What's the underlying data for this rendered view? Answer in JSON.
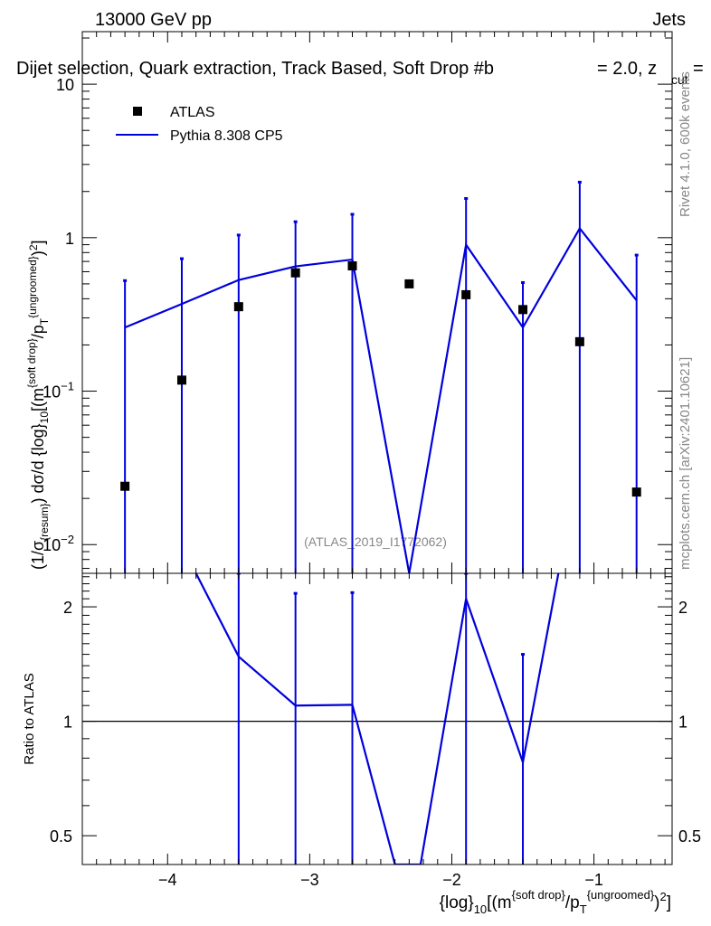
{
  "header": {
    "left": "13000 GeV pp",
    "right": "Jets",
    "title_main": "Dijet selection, Quark extraction, Track Based, Soft Drop #b",
    "title_tail": "= 2.0, z",
    "title_sub": "cut",
    "title_end": "=",
    "side_rivet": "Rivet 4.1.0,  600k events",
    "side_mcplots": "mcplots.cern.ch [arXiv:2401.10621]",
    "watermark": "(ATLAS_2019_I1772062)"
  },
  "colors": {
    "mc": "#0000dd",
    "data": "#000000",
    "axis": "#000000"
  },
  "chart_data": [
    {
      "type": "scatter",
      "name": "main-panel",
      "yscale": "log",
      "xlim": [
        -4.6,
        -0.45
      ],
      "ylim": [
        0.0065,
        22
      ],
      "ylabel": "(1/σ_{resum}) dσ/d {log}_{10}[(m^{soft drop}/p_T^{ungroomed})^2]",
      "ytick_labels": [
        "10^-2",
        "10^-1",
        "1",
        "10"
      ],
      "legend": {
        "position": "top-left",
        "entries": [
          "ATLAS",
          "Pythia 8.308 CP5"
        ]
      },
      "series": [
        {
          "name": "ATLAS",
          "kind": "points",
          "x": [
            -4.3,
            -3.9,
            -3.5,
            -3.1,
            -2.7,
            -2.3,
            -1.9,
            -1.5,
            -1.1,
            -0.7
          ],
          "y": [
            0.024,
            0.118,
            0.355,
            0.59,
            0.655,
            0.5,
            0.425,
            0.34,
            0.21,
            0.022
          ],
          "yerr_up": [
            0.525,
            0.73,
            1.04,
            1.27,
            1.42,
            null,
            1.8,
            0.51,
            2.3,
            0.77
          ]
        },
        {
          "name": "Pythia 8.308 CP5",
          "kind": "line",
          "x": [
            -4.3,
            -3.9,
            -3.5,
            -3.1,
            -2.7,
            -2.3,
            -1.9,
            -1.5,
            -1.1,
            -0.7
          ],
          "y": [
            0.26,
            0.37,
            0.53,
            0.65,
            0.72,
            0.0065,
            0.9,
            0.26,
            1.15,
            0.39
          ]
        }
      ]
    },
    {
      "type": "line",
      "name": "ratio-panel",
      "yscale": "log",
      "xlim": [
        -4.6,
        -0.45
      ],
      "ylim": [
        0.42,
        2.45
      ],
      "xlabel": "{log}_{10}[(m^{soft drop}/p_T^{ungroomed})^2]",
      "ylabel": "Ratio to ATLAS",
      "xtick_labels": [
        "−4",
        "−3",
        "−2",
        "−1"
      ],
      "ytick_labels": [
        "0.5",
        "1",
        "2"
      ],
      "reference_line": 1,
      "series": [
        {
          "name": "Pythia / ATLAS",
          "x": [
            -3.8,
            -3.5,
            -3.1,
            -2.7,
            -2.4,
            -2.22,
            -1.9,
            -1.5,
            -1.25
          ],
          "y": [
            2.45,
            1.48,
            1.1,
            1.105,
            0.42,
            0.42,
            2.1,
            0.78,
            2.45
          ]
        },
        {
          "name": "ATLAS uncertainty",
          "x": [
            -3.5,
            -3.1,
            -2.7,
            -1.9,
            -1.5
          ],
          "yerr_up": [
            2.45,
            2.17,
            2.18,
            2.45,
            1.5
          ]
        }
      ]
    }
  ]
}
